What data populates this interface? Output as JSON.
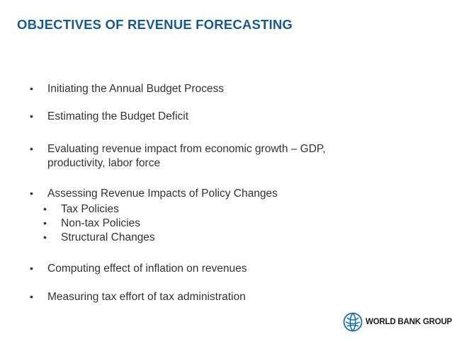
{
  "slide": {
    "title": "OBJECTIVES OF REVENUE FORECASTING",
    "bullets": [
      "Initiating the Annual Budget Process",
      "Estimating the Budget Deficit",
      "Evaluating revenue impact from economic growth – GDP,",
      "productivity, labor force",
      "Assessing Revenue Impacts of Policy Changes",
      "Tax Policies",
      "Non-tax Policies",
      "Structural Changes",
      "Computing effect of inflation on revenues",
      "Measuring tax effort of tax administration"
    ],
    "bullet_glyph": "•",
    "title_color": "#1a5a8a",
    "text_color": "#333333",
    "logo": {
      "text": "WORLD BANK GROUP",
      "icon": "globe-icon",
      "color": "#1a6fa8"
    }
  }
}
